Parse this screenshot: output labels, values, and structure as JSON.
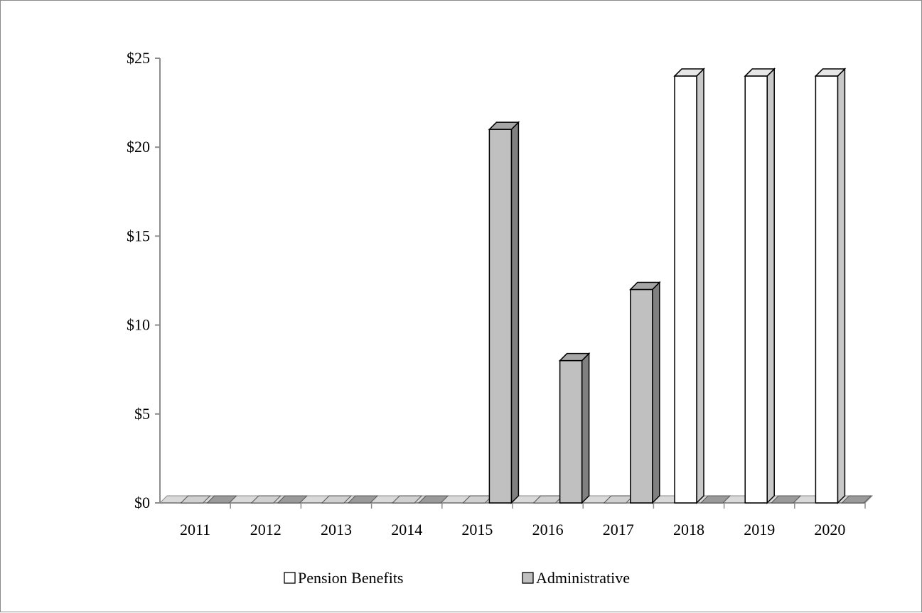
{
  "chart_data": {
    "type": "bar",
    "title": "",
    "xlabel": "",
    "ylabel": "",
    "categories": [
      "2011",
      "2012",
      "2013",
      "2014",
      "2015",
      "2016",
      "2017",
      "2018",
      "2019",
      "2020"
    ],
    "series": [
      {
        "name": "Pension Benefits",
        "values": [
          0,
          0,
          0,
          0,
          0,
          0,
          0,
          24,
          24,
          24
        ],
        "color": "#ffffff",
        "side_color": "#c8c8c8",
        "top_color": "#e6e6e6"
      },
      {
        "name": "Administrative",
        "values": [
          0,
          0,
          0,
          0,
          21,
          8,
          12,
          0,
          0,
          0
        ],
        "color": "#c0c0c0",
        "side_color": "#808080",
        "top_color": "#a6a6a6"
      }
    ],
    "ylim": [
      0,
      25
    ],
    "yticks": [
      0,
      5,
      10,
      15,
      20,
      25
    ],
    "ytick_labels": [
      "$0",
      "$5",
      "$10",
      "$15",
      "$20",
      "$25"
    ],
    "grid": false,
    "legend_position": "bottom",
    "style": "3d-column"
  }
}
